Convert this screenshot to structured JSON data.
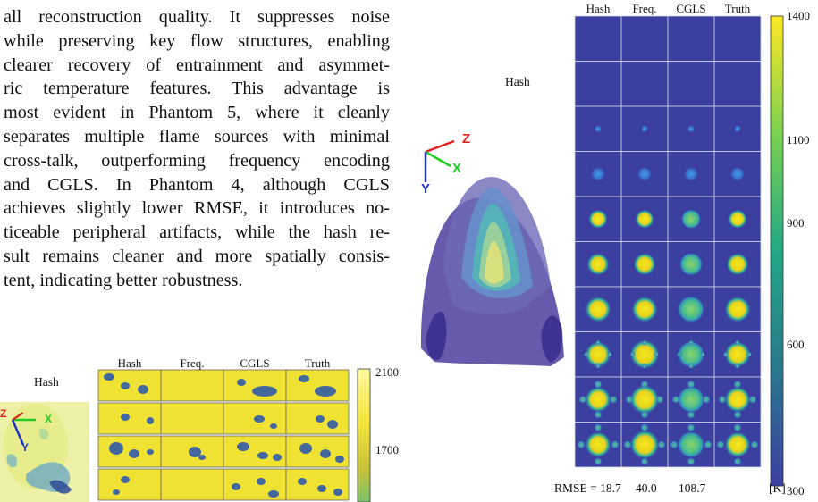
{
  "paragraph_lines": [
    "all reconstruction quality. It suppresses noise",
    "while preserving key flow structures, enabling",
    "clearer recovery of entrainment and asymmet-",
    "ric temperature features.  This advantage is",
    "most evident in Phantom 5, where it cleanly",
    "separates multiple flame sources with minimal",
    "cross-talk, outperforming frequency encoding",
    "and CGLS. In Phantom 4, although CGLS",
    "achieves slightly lower RMSE, it introduces no-",
    "ticeable peripheral artifacts, while the hash re-",
    "sult remains cleaner and more spatially consis-",
    "tent, indicating better robustness."
  ],
  "right_figure": {
    "volume_label": "Hash",
    "axes": {
      "z": "Z",
      "x": "X",
      "y": "Y"
    },
    "column_headers": [
      "Hash",
      "Freq.",
      "CGLS",
      "Truth"
    ],
    "rmse_label": "RMSE = 18.7",
    "rmse_values": [
      "40.0",
      "108.7"
    ],
    "unit": "[K]",
    "colorbar_ticks": [
      "1400",
      "1100",
      "900",
      "600",
      "300"
    ],
    "colors": {
      "background": "#3b3fa0",
      "mid": "#21a685",
      "high": "#f2e51d"
    }
  },
  "left_figure": {
    "volume_label": "Hash",
    "axes": {
      "z": "Z",
      "x": "X",
      "y": "Y"
    },
    "column_headers": [
      "Hash",
      "Freq.",
      "CGLS",
      "Truth"
    ],
    "colorbar_ticks": [
      "2100",
      "1700"
    ],
    "colors": {
      "background": "#f0e233",
      "cold": "#2452b0"
    }
  }
}
